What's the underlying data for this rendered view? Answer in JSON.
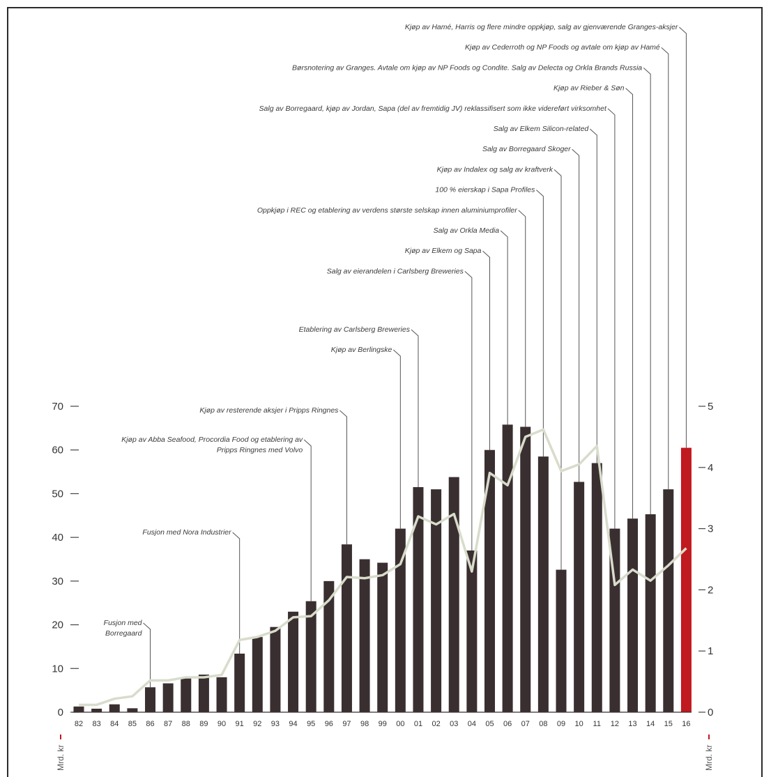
{
  "chart_data": {
    "type": "bar",
    "categories": [
      "82",
      "83",
      "84",
      "85",
      "86",
      "87",
      "88",
      "89",
      "90",
      "91",
      "92",
      "93",
      "94",
      "95",
      "96",
      "97",
      "98",
      "99",
      "00",
      "01",
      "02",
      "03",
      "04",
      "05",
      "06",
      "07",
      "08",
      "09",
      "10",
      "11",
      "12",
      "13",
      "14",
      "15",
      "16"
    ],
    "series": [
      {
        "kind": "bar",
        "axis": "left",
        "values": [
          1.3,
          0.8,
          1.8,
          0.9,
          5.7,
          6.6,
          7.8,
          8.6,
          8.0,
          13.4,
          17.2,
          19.5,
          23.0,
          25.4,
          30.0,
          38.4,
          35.0,
          34.2,
          42.0,
          51.5,
          51.0,
          53.8,
          37.0,
          60.0,
          65.8,
          65.3,
          58.5,
          32.6,
          52.7,
          57.0,
          42.0,
          44.3,
          45.3,
          51.0,
          60.5
        ],
        "colors": {
          "default": "#3a2f30",
          "highlight": "#c0191f"
        },
        "highlight_index": 34
      },
      {
        "kind": "line",
        "axis": "right",
        "values": [
          0.12,
          0.12,
          0.22,
          0.26,
          0.52,
          0.52,
          0.57,
          0.57,
          0.61,
          1.18,
          1.23,
          1.33,
          1.55,
          1.57,
          1.83,
          2.21,
          2.19,
          2.24,
          2.42,
          3.2,
          3.07,
          3.24,
          2.3,
          3.91,
          3.71,
          4.5,
          4.62,
          3.94,
          4.05,
          4.35,
          2.08,
          2.33,
          2.15,
          2.4,
          2.68
        ],
        "color": "#d8dccb"
      }
    ],
    "left_axis": {
      "ticks": [
        "0",
        "10",
        "20",
        "30",
        "40",
        "50",
        "60",
        "70"
      ],
      "ylim": [
        0,
        70
      ],
      "unit": "Mrd. kr"
    },
    "right_axis": {
      "ticks": [
        "0",
        "1",
        "2",
        "3",
        "4",
        "5"
      ],
      "ylim": [
        0,
        5
      ],
      "unit": "Mrd. kr"
    },
    "annotations": [
      {
        "text": "Fusjon med",
        "text2": "Borregaard",
        "category": "86"
      },
      {
        "text": "Fusjon med Nora Industrier",
        "category": "91"
      },
      {
        "text": "Kjøp av Abba Seafood, Procordia Food og etablering av",
        "text2": "Pripps Ringnes med Volvo",
        "category": "95"
      },
      {
        "text": "Kjøp av resterende aksjer i Pripps Ringnes",
        "category": "97"
      },
      {
        "text": "Kjøp av Berlingske",
        "category": "00"
      },
      {
        "text": "Etablering av Carlsberg Breweries",
        "category": "01"
      },
      {
        "text": "Salg av eierandelen i Carlsberg Breweries",
        "category": "04"
      },
      {
        "text": "Kjøp av Elkem og Sapa",
        "category": "05"
      },
      {
        "text": "Salg av Orkla Media",
        "category": "06"
      },
      {
        "text": "Oppkjøp i REC og etablering av verdens største selskap innen aluminiumprofiler",
        "category": "07"
      },
      {
        "text": "100 % eierskap i Sapa Profiles",
        "category": "08"
      },
      {
        "text": "Kjøp av Indalex og salg av kraftverk",
        "category": "09"
      },
      {
        "text": "Salg av Borregaard Skoger",
        "category": "10"
      },
      {
        "text": "Salg av Elkem Silicon-related",
        "category": "11"
      },
      {
        "text": "Salg av Borregaard, kjøp av Jordan, Sapa (del av fremtidig JV) reklassifisert som ikke videreført virksomhet",
        "category": "12"
      },
      {
        "text": "Kjøp av Rieber & Søn",
        "category": "13"
      },
      {
        "text": "Børsnotering av Granges. Avtale om kjøp av NP Foods og Condite. Salg av Delecta og Orkla Brands Russia",
        "category": "14"
      },
      {
        "text": "Kjøp av Cederroth og NP Foods og avtale om kjøp av Hamé",
        "category": "15"
      },
      {
        "text": "Kjøp av Hamé, Harris og flere mindre oppkjøp, salg av gjenværende Granges-aksjer",
        "category": "16"
      }
    ]
  }
}
